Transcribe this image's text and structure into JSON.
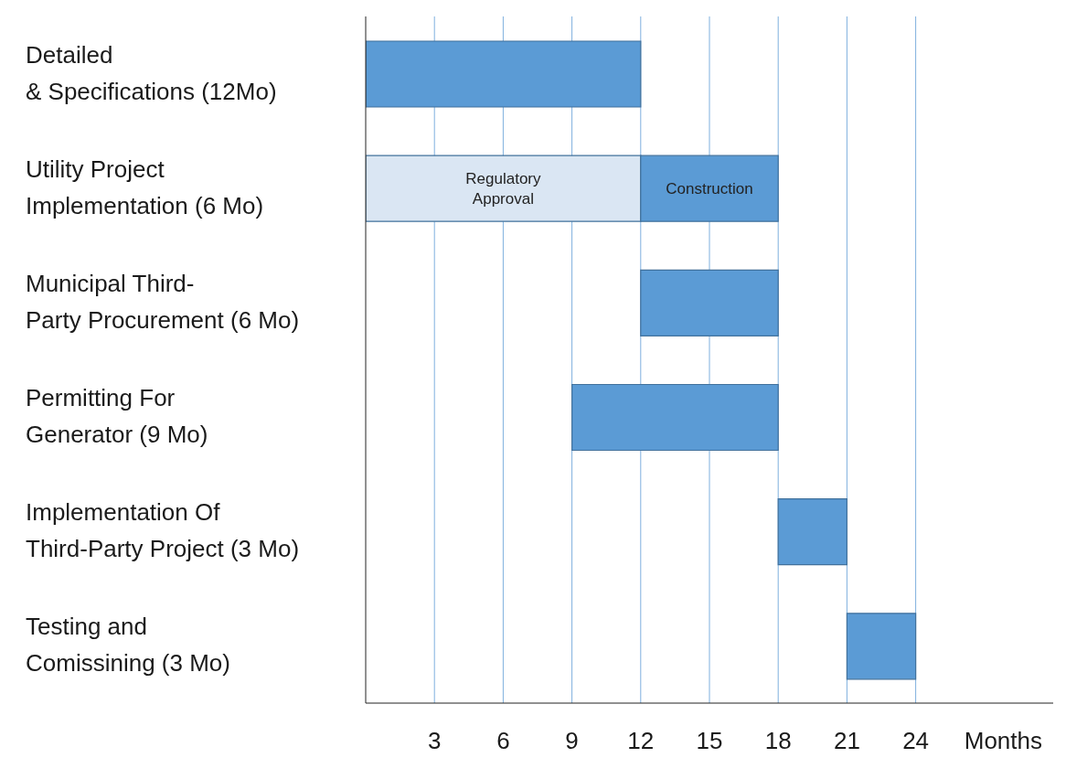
{
  "chart_data": {
    "type": "bar",
    "orientation": "horizontal",
    "categories": [
      "Detailed\n& Specifications (12Mo)",
      "Utility Project\nImplementation (6 Mo)",
      "Municipal Third-\nParty Procurement (6 Mo)",
      "Permitting For\nGenerator (9 Mo)",
      "Implementation Of\nThird-Party Project (3 Mo)",
      "Testing and\nComissining (3 Mo)"
    ],
    "series": [
      {
        "color": "#dae6f3",
        "values": [
          null,
          12,
          null,
          null,
          null,
          null
        ],
        "base": [
          null,
          0,
          null,
          null,
          null,
          null
        ],
        "value_labels": [
          null,
          "Regulatory\nApproval",
          null,
          null,
          null,
          null
        ]
      },
      {
        "color": "#5b9bd5",
        "values": [
          12,
          6,
          6,
          9,
          3,
          3
        ],
        "base": [
          0,
          12,
          12,
          9,
          18,
          21
        ],
        "value_labels": [
          null,
          "Construction",
          null,
          null,
          null,
          null
        ]
      }
    ],
    "xlim": [
      0,
      30
    ],
    "xticks": [
      3,
      6,
      9,
      12,
      15,
      18,
      21,
      24
    ],
    "xlabel": "Months",
    "grid": "x",
    "legend": false
  }
}
